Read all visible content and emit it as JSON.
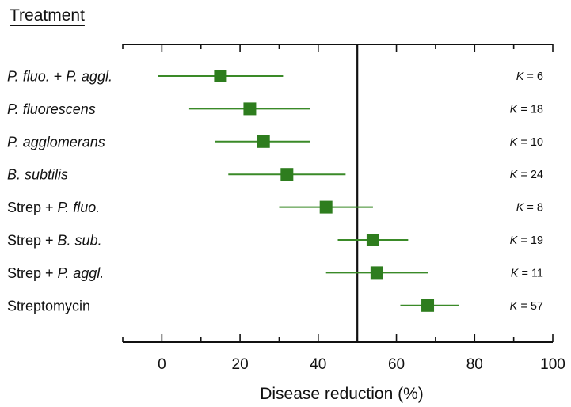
{
  "chart_data": {
    "type": "forest",
    "heading": "Treatment",
    "xlabel": "Disease reduction (%)",
    "xlim": [
      -10,
      100
    ],
    "xticks": [
      "0",
      "20",
      "40",
      "60",
      "80",
      "100"
    ],
    "reference_line_x": 50,
    "marker_color": "#2e7d1e",
    "line_color": "#3a8a28",
    "rows": [
      {
        "parts": [
          {
            "text": "P. fluo.",
            "italic": true
          },
          {
            "text": " + ",
            "italic": false
          },
          {
            "text": "P. aggl.",
            "italic": true
          }
        ],
        "estimate": 15,
        "lower": -1,
        "upper": 31,
        "k_prefix": "K",
        "k_value": "= 6"
      },
      {
        "parts": [
          {
            "text": "P. fluorescens",
            "italic": true
          }
        ],
        "estimate": 22.5,
        "lower": 7,
        "upper": 38,
        "k_prefix": "K",
        "k_value": "= 18"
      },
      {
        "parts": [
          {
            "text": "P. agglomerans",
            "italic": true
          }
        ],
        "estimate": 26,
        "lower": 13.5,
        "upper": 38,
        "k_prefix": "K",
        "k_value": "= 10"
      },
      {
        "parts": [
          {
            "text": "B. subtilis",
            "italic": true
          }
        ],
        "estimate": 32,
        "lower": 17,
        "upper": 47,
        "k_prefix": "K",
        "k_value": "= 24"
      },
      {
        "parts": [
          {
            "text": "Strep + ",
            "italic": false
          },
          {
            "text": "P. fluo.",
            "italic": true
          }
        ],
        "estimate": 42,
        "lower": 30,
        "upper": 54,
        "k_prefix": "K",
        "k_value": "= 8"
      },
      {
        "parts": [
          {
            "text": "Strep + ",
            "italic": false
          },
          {
            "text": "B. sub.",
            "italic": true
          }
        ],
        "estimate": 54,
        "lower": 45,
        "upper": 63,
        "k_prefix": "K",
        "k_value": "= 19"
      },
      {
        "parts": [
          {
            "text": "Strep + ",
            "italic": false
          },
          {
            "text": "P. aggl.",
            "italic": true
          }
        ],
        "estimate": 55,
        "lower": 42,
        "upper": 68,
        "k_prefix": "K",
        "k_value": "= 11"
      },
      {
        "parts": [
          {
            "text": "Streptomycin",
            "italic": false
          }
        ],
        "estimate": 68,
        "lower": 61,
        "upper": 76,
        "k_prefix": "K",
        "k_value": "= 57"
      }
    ]
  }
}
